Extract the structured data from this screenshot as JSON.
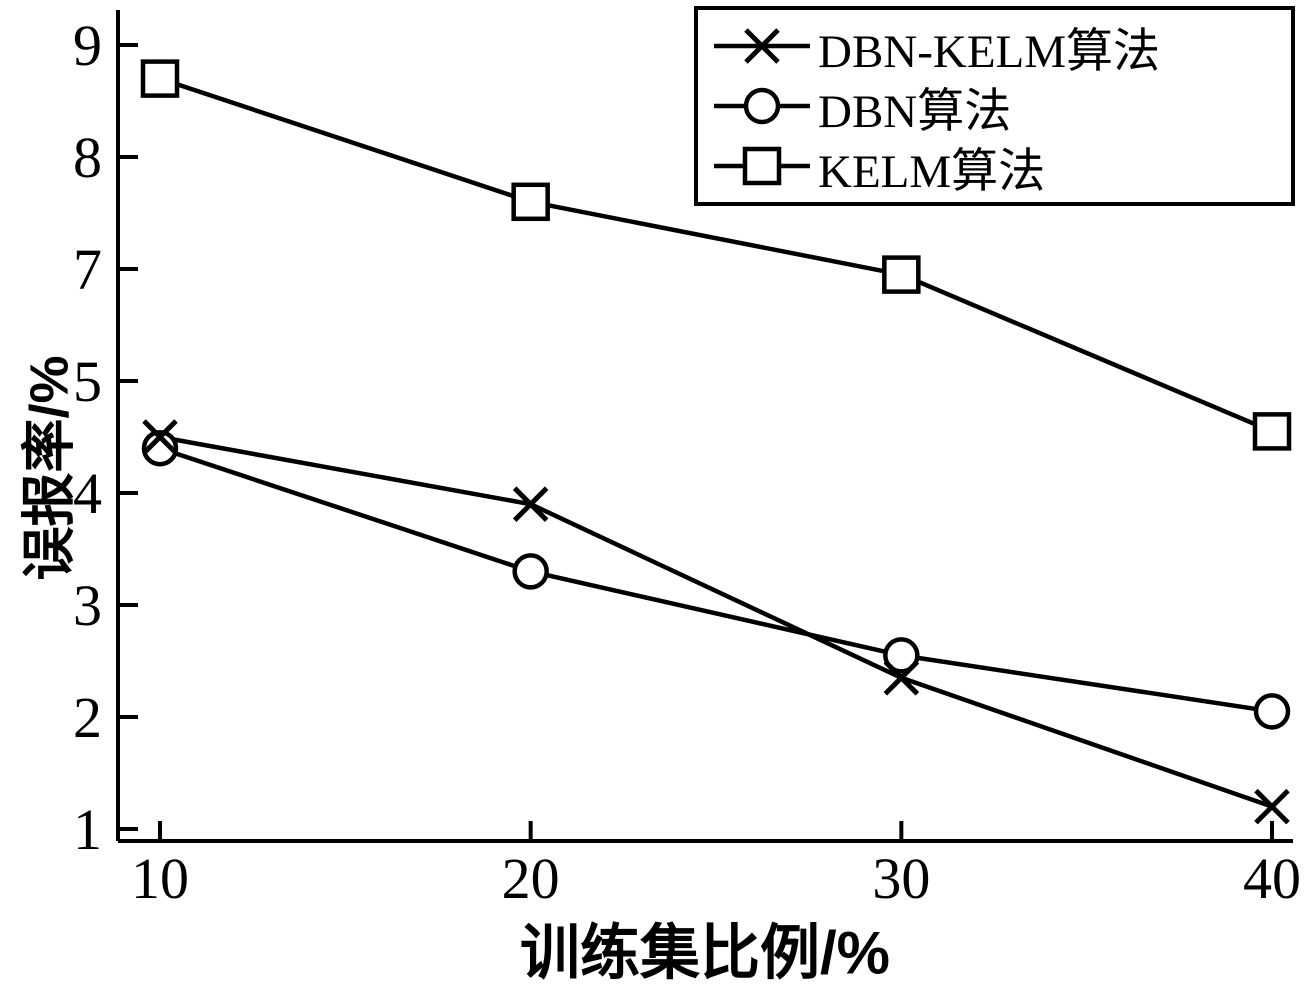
{
  "chart_data": {
    "type": "line",
    "title": "",
    "xlabel": "训练集比例/%",
    "ylabel": "误报率/%",
    "x": [
      10,
      20,
      30,
      40
    ],
    "x_ticks": [
      10,
      20,
      30,
      40
    ],
    "y_tick_labels": [
      "1",
      "2",
      "3",
      "4",
      "5",
      "7",
      "8",
      "9"
    ],
    "y_tick_values": [
      1,
      2,
      3,
      4,
      5,
      7,
      8,
      9
    ],
    "series": [
      {
        "name": "DBN-KELM算法",
        "marker": "x",
        "color": "#000000",
        "values": [
          4.5,
          3.9,
          2.35,
          1.2
        ]
      },
      {
        "name": "DBN算法",
        "marker": "circle",
        "color": "#000000",
        "values": [
          4.4,
          3.3,
          2.55,
          2.05
        ]
      },
      {
        "name": "KELM算法",
        "marker": "square",
        "color": "#000000",
        "values": [
          8.7,
          7.6,
          6.9,
          4.55
        ]
      }
    ],
    "legend_position": "top-right",
    "grid": false,
    "axis_color": "#000000",
    "background": "#ffffff"
  }
}
